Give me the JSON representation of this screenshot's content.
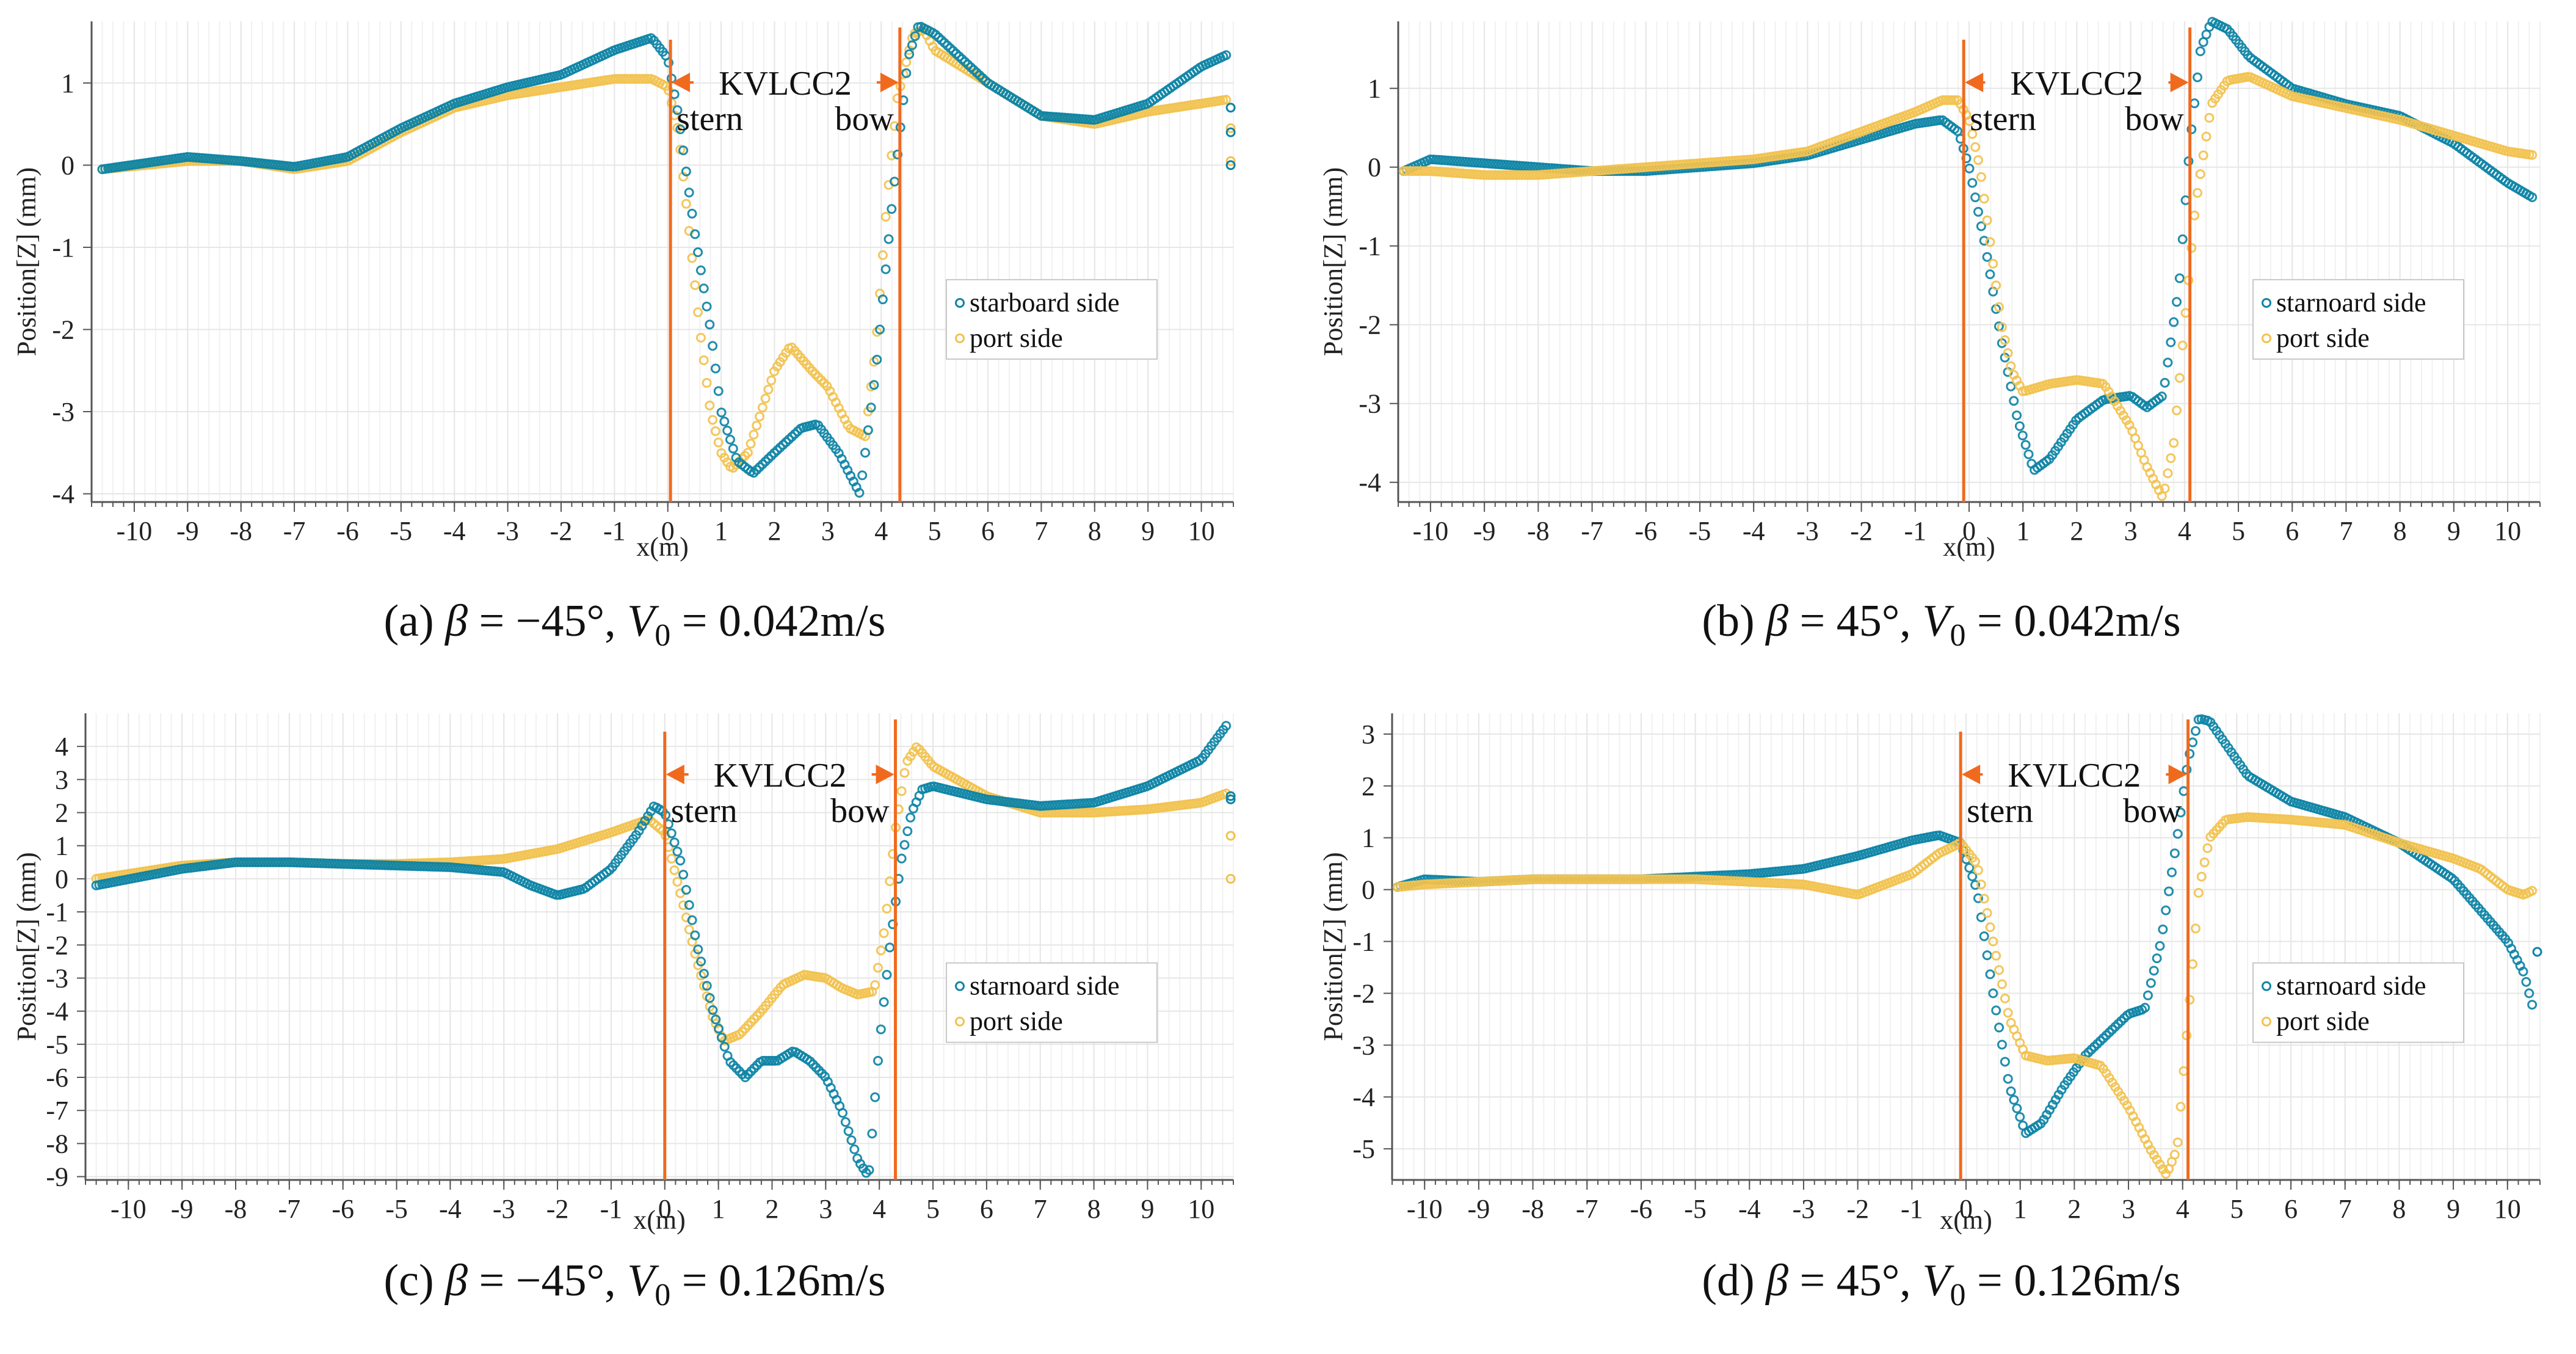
{
  "colors": {
    "starboard": "#0e84a6",
    "port": "#f2c24f",
    "hull_line": "#f06a1e",
    "grid": "#e6e6e6",
    "axis": "#555555"
  },
  "chart_data": [
    {
      "id": "a",
      "type": "scatter",
      "caption": {
        "prefix": "(a) ",
        "beta_sym": "β",
        "beta_value": " = −45°, ",
        "v_sym": "V",
        "v_sub": "0",
        "v_value": " = 0.042m/s"
      },
      "xlabel": "x(m)",
      "ylabel": "Position[Z] (mm)",
      "xlim": [
        -10.8,
        10.6
      ],
      "ylim": [
        -4.1,
        1.75
      ],
      "xticks": [
        -10,
        -9,
        -8,
        -7,
        -6,
        -5,
        -4,
        -3,
        -2,
        -1,
        0,
        1,
        2,
        3,
        4,
        5,
        6,
        7,
        8,
        9,
        10
      ],
      "yticks": [
        1,
        0,
        -1,
        -2,
        -3,
        -4
      ],
      "hull": {
        "stern_x": 0.05,
        "bow_x": 4.35,
        "name": "KVLCC2",
        "stern_label": "stern",
        "bow_label": "bow"
      },
      "legend": {
        "position": "center-right",
        "entries": [
          "starboard side",
          "port side"
        ]
      },
      "series": [
        {
          "name": "starboard side",
          "x": [
            -10.6,
            -9,
            -8,
            -7,
            -6,
            -5,
            -4,
            -3,
            -2,
            -1,
            -0.3,
            0,
            0.2,
            0.5,
            0.8,
            1.0,
            1.3,
            1.6,
            2.0,
            2.5,
            2.8,
            3.2,
            3.6,
            3.9,
            4.2,
            4.5,
            4.7,
            5,
            6,
            7,
            8,
            9,
            10,
            10.5
          ],
          "y": [
            -0.05,
            0.1,
            0.05,
            -0.02,
            0.1,
            0.45,
            0.75,
            0.95,
            1.1,
            1.4,
            1.55,
            1.3,
            0.6,
            -0.8,
            -2.0,
            -3.0,
            -3.6,
            -3.75,
            -3.5,
            -3.2,
            -3.15,
            -3.5,
            -4.0,
            -2.5,
            -0.5,
            1.3,
            1.7,
            1.6,
            1.0,
            0.6,
            0.55,
            0.75,
            1.2,
            1.35
          ],
          "extra_x": [
            10.55,
            10.55,
            10.55
          ],
          "extra_y": [
            0.7,
            0.4,
            0.0
          ]
        },
        {
          "name": "port side",
          "x": [
            -10.6,
            -9,
            -8,
            -7,
            -6,
            -5,
            -4,
            -3,
            -2,
            -1,
            -0.3,
            0,
            0.2,
            0.4,
            0.6,
            0.8,
            1.0,
            1.2,
            1.5,
            2.0,
            2.3,
            2.7,
            3.0,
            3.4,
            3.7,
            3.9,
            4.1,
            4.3,
            4.6,
            4.8,
            5,
            6,
            7,
            8,
            9,
            10,
            10.5
          ],
          "y": [
            -0.05,
            0.05,
            0.05,
            -0.05,
            0.05,
            0.4,
            0.7,
            0.85,
            0.95,
            1.05,
            1.05,
            0.95,
            0.4,
            -0.8,
            -2.0,
            -3.0,
            -3.5,
            -3.7,
            -3.5,
            -2.5,
            -2.2,
            -2.5,
            -2.7,
            -3.2,
            -3.3,
            -2.2,
            -0.5,
            0.8,
            1.6,
            1.65,
            1.4,
            1.0,
            0.6,
            0.5,
            0.65,
            0.75,
            0.8
          ],
          "extra_x": [
            10.55,
            10.55
          ],
          "extra_y": [
            0.45,
            0.05
          ]
        }
      ]
    },
    {
      "id": "b",
      "type": "scatter",
      "caption": {
        "prefix": "(b) ",
        "beta_sym": "β",
        "beta_value": " = 45°, ",
        "v_sym": "V",
        "v_sub": "0",
        "v_value": " = 0.042m/s"
      },
      "xlabel": "x(m)",
      "ylabel": "Position[Z] (mm)",
      "xlim": [
        -10.6,
        10.6
      ],
      "ylim": [
        -4.25,
        1.85
      ],
      "xticks": [
        -10,
        -9,
        -8,
        -7,
        -6,
        -5,
        -4,
        -3,
        -2,
        -1,
        0,
        1,
        2,
        3,
        4,
        5,
        6,
        7,
        8,
        9,
        10
      ],
      "yticks": [
        1,
        0,
        -1,
        -2,
        -3,
        -4
      ],
      "hull": {
        "stern_x": -0.1,
        "bow_x": 4.1,
        "name": "KVLCC2",
        "stern_label": "stern",
        "bow_label": "bow"
      },
      "legend": {
        "position": "center-right",
        "entries": [
          "starnoard side",
          "port side"
        ]
      },
      "series": [
        {
          "name": "starnoard side",
          "x": [
            -10.5,
            -10,
            -9,
            -8,
            -7,
            -6,
            -5,
            -4,
            -3,
            -2,
            -1,
            -0.5,
            -0.2,
            0,
            0.3,
            0.6,
            0.9,
            1.2,
            1.5,
            2.0,
            2.5,
            3.0,
            3.3,
            3.6,
            3.9,
            4.1,
            4.3,
            4.5,
            4.8,
            5.2,
            6,
            7,
            8,
            9,
            10,
            10.5
          ],
          "y": [
            -0.05,
            0.1,
            0.05,
            0.0,
            -0.05,
            -0.05,
            0.0,
            0.05,
            0.15,
            0.35,
            0.55,
            0.6,
            0.45,
            0.0,
            -1.0,
            -2.2,
            -3.2,
            -3.85,
            -3.7,
            -3.2,
            -2.95,
            -2.9,
            -3.05,
            -2.9,
            -1.5,
            0.3,
            1.5,
            1.85,
            1.75,
            1.4,
            1.0,
            0.8,
            0.65,
            0.3,
            -0.2,
            -0.4
          ],
          "extra_x": [],
          "extra_y": []
        },
        {
          "name": "port side",
          "x": [
            -10.5,
            -10,
            -9,
            -8,
            -7,
            -6,
            -5,
            -4,
            -3,
            -2,
            -1,
            -0.5,
            -0.2,
            0,
            0.2,
            0.4,
            0.6,
            0.8,
            1.0,
            1.5,
            2.0,
            2.5,
            3.0,
            3.3,
            3.6,
            3.8,
            4.0,
            4.2,
            4.5,
            4.8,
            5.2,
            6,
            7,
            8,
            9,
            10,
            10.5
          ],
          "y": [
            -0.05,
            -0.05,
            -0.1,
            -0.1,
            -0.05,
            0.0,
            0.05,
            0.1,
            0.2,
            0.45,
            0.7,
            0.85,
            0.85,
            0.6,
            0.0,
            -1.0,
            -2.0,
            -2.6,
            -2.85,
            -2.75,
            -2.7,
            -2.75,
            -3.3,
            -3.8,
            -4.2,
            -3.5,
            -2.0,
            -0.5,
            0.8,
            1.1,
            1.15,
            0.9,
            0.75,
            0.6,
            0.4,
            0.2,
            0.15
          ],
          "extra_x": [],
          "extra_y": []
        }
      ]
    },
    {
      "id": "c",
      "type": "scatter",
      "caption": {
        "prefix": "(c) ",
        "beta_sym": "β",
        "beta_value": " = −45°, ",
        "v_sym": "V",
        "v_sub": "0",
        "v_value": " = 0.126m/s"
      },
      "xlabel": "x(m)",
      "ylabel": "Position[Z] (mm)",
      "xlim": [
        -10.8,
        10.6
      ],
      "ylim": [
        -9.1,
        5.0
      ],
      "xticks": [
        -10,
        -9,
        -8,
        -7,
        -6,
        -5,
        -4,
        -3,
        -2,
        -1,
        0,
        1,
        2,
        3,
        4,
        5,
        6,
        7,
        8,
        9,
        10
      ],
      "yticks": [
        4,
        3,
        2,
        1,
        0,
        -1,
        -2,
        -3,
        -4,
        -5,
        -6,
        -7,
        -8,
        -9
      ],
      "hull": {
        "stern_x": 0.0,
        "bow_x": 4.3,
        "name": "KVLCC2",
        "stern_label": "stern",
        "bow_label": "bow"
      },
      "legend": {
        "position": "center-right",
        "entries": [
          "starnoard side",
          "port side"
        ]
      },
      "series": [
        {
          "name": "starnoard side",
          "x": [
            -10.6,
            -9,
            -8,
            -7,
            -6,
            -5,
            -4,
            -3,
            -2.5,
            -2,
            -1.5,
            -1,
            -0.5,
            -0.2,
            0,
            0.3,
            0.6,
            0.9,
            1.2,
            1.5,
            1.8,
            2.1,
            2.4,
            2.7,
            3.0,
            3.3,
            3.6,
            3.8,
            4.0,
            4.2,
            4.4,
            4.6,
            4.8,
            5,
            6,
            7,
            8,
            9,
            10,
            10.5
          ],
          "y": [
            -0.2,
            0.3,
            0.5,
            0.5,
            0.45,
            0.4,
            0.35,
            0.2,
            -0.2,
            -0.5,
            -0.3,
            0.3,
            1.4,
            2.2,
            2.0,
            0.5,
            -2.0,
            -4.0,
            -5.5,
            -6.0,
            -5.5,
            -5.5,
            -5.2,
            -5.5,
            -6.0,
            -7.0,
            -8.5,
            -9.0,
            -5.0,
            -2.0,
            0.5,
            2.0,
            2.7,
            2.8,
            2.4,
            2.2,
            2.3,
            2.8,
            3.6,
            4.7
          ],
          "extra_x": [
            10.55,
            10.55
          ],
          "extra_y": [
            2.5,
            2.4
          ]
        },
        {
          "name": "port side",
          "x": [
            -10.6,
            -9,
            -8,
            -7,
            -6,
            -5,
            -4,
            -3,
            -2,
            -1,
            -0.3,
            0,
            0.3,
            0.6,
            0.9,
            1.1,
            1.4,
            1.8,
            2.2,
            2.6,
            3.0,
            3.3,
            3.6,
            3.9,
            4.1,
            4.3,
            4.5,
            4.7,
            5,
            6,
            7,
            8,
            9,
            10,
            10.5
          ],
          "y": [
            0.0,
            0.4,
            0.5,
            0.5,
            0.45,
            0.45,
            0.5,
            0.6,
            0.9,
            1.4,
            1.8,
            1.4,
            -0.5,
            -2.5,
            -4.2,
            -4.9,
            -4.7,
            -4.0,
            -3.2,
            -2.9,
            -3.0,
            -3.3,
            -3.5,
            -3.4,
            -1.5,
            1.5,
            3.5,
            4.0,
            3.4,
            2.5,
            2.0,
            2.0,
            2.1,
            2.3,
            2.6
          ],
          "extra_x": [
            10.55,
            10.55
          ],
          "extra_y": [
            1.3,
            0.0
          ]
        }
      ]
    },
    {
      "id": "d",
      "type": "scatter",
      "caption": {
        "prefix": "(d) ",
        "beta_sym": "β",
        "beta_value": " = 45°, ",
        "v_sym": "V",
        "v_sub": "0",
        "v_value": " = 0.126m/s"
      },
      "xlabel": "x(m)",
      "ylabel": "Position[Z] (mm)",
      "xlim": [
        -10.6,
        10.6
      ],
      "ylim": [
        -5.6,
        3.4
      ],
      "xticks": [
        -10,
        -9,
        -8,
        -7,
        -6,
        -5,
        -4,
        -3,
        -2,
        -1,
        0,
        1,
        2,
        3,
        4,
        5,
        6,
        7,
        8,
        9,
        10
      ],
      "yticks": [
        3,
        2,
        1,
        0,
        -1,
        -2,
        -3,
        -4,
        -5
      ],
      "hull": {
        "stern_x": -0.1,
        "bow_x": 4.1,
        "name": "KVLCC2",
        "stern_label": "stern",
        "bow_label": "bow"
      },
      "legend": {
        "position": "center-right",
        "entries": [
          "starnoard side",
          "port side"
        ]
      },
      "series": [
        {
          "name": "starnoard side",
          "x": [
            -10.5,
            -10,
            -9,
            -8,
            -7,
            -6,
            -5,
            -4,
            -3,
            -2,
            -1,
            -0.5,
            -0.1,
            0.2,
            0.5,
            0.8,
            1.1,
            1.4,
            1.8,
            2.2,
            2.7,
            3.0,
            3.3,
            3.6,
            3.9,
            4.1,
            4.3,
            4.5,
            4.8,
            5.2,
            6,
            7,
            8,
            9,
            9.5,
            10,
            10.3,
            10.5
          ],
          "y": [
            0.05,
            0.2,
            0.15,
            0.2,
            0.2,
            0.2,
            0.25,
            0.3,
            0.4,
            0.65,
            0.95,
            1.05,
            0.9,
            0.0,
            -2.0,
            -3.8,
            -4.7,
            -4.5,
            -3.8,
            -3.2,
            -2.7,
            -2.4,
            -2.3,
            -1.0,
            1.0,
            2.5,
            3.3,
            3.25,
            2.8,
            2.2,
            1.7,
            1.4,
            0.9,
            0.2,
            -0.4,
            -1.0,
            -1.6,
            -2.4
          ],
          "extra_x": [
            10.55
          ],
          "extra_y": [
            -1.2
          ]
        },
        {
          "name": "port side",
          "x": [
            -10.5,
            -10,
            -9,
            -8,
            -7,
            -6,
            -5,
            -4,
            -3,
            -2,
            -1,
            -0.5,
            -0.1,
            0.2,
            0.5,
            0.8,
            1.1,
            1.5,
            2.0,
            2.5,
            3.0,
            3.4,
            3.7,
            3.9,
            4.1,
            4.3,
            4.5,
            4.8,
            5.2,
            6,
            7,
            8,
            9,
            9.5,
            10,
            10.3,
            10.5
          ],
          "y": [
            0.05,
            0.1,
            0.15,
            0.2,
            0.2,
            0.2,
            0.2,
            0.15,
            0.1,
            -0.1,
            0.3,
            0.7,
            0.9,
            0.5,
            -1.0,
            -2.5,
            -3.2,
            -3.3,
            -3.25,
            -3.4,
            -4.2,
            -5.0,
            -5.5,
            -5.0,
            -2.5,
            0.0,
            1.0,
            1.35,
            1.4,
            1.35,
            1.25,
            0.9,
            0.6,
            0.4,
            0.0,
            -0.1,
            0.0
          ],
          "extra_x": [],
          "extra_y": []
        }
      ]
    }
  ]
}
